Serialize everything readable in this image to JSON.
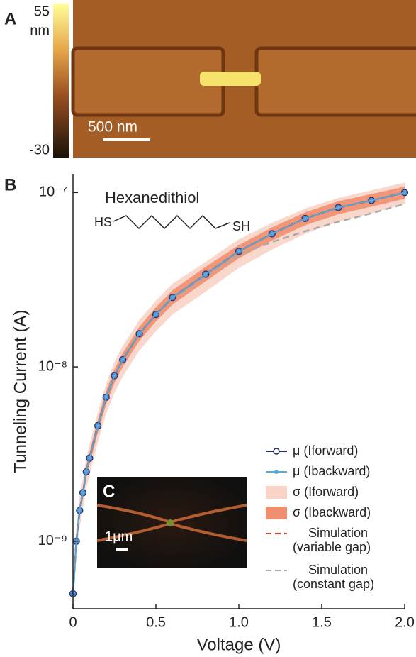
{
  "panels": {
    "a": {
      "label": "A",
      "colorbar": {
        "lim": [
          -30,
          55
        ],
        "ticks": [
          -30,
          55
        ],
        "unit": "nm"
      },
      "scale_bar": "500 nm"
    },
    "c": {
      "label": "C",
      "scale_bar": "1μm"
    }
  },
  "chart_data": {
    "type": "line",
    "panel_label": "B",
    "annotation": "Hexanedithiol",
    "molecule_left": "HS",
    "molecule_right": "SH",
    "x_label": "Voltage (V)",
    "y_label": "Tunneling Current (A)",
    "log_y": true,
    "xlim": [
      0,
      2.0
    ],
    "xticks": [
      0,
      0.5,
      {
        "value": 1.0,
        "label": "1.0"
      },
      1.5,
      {
        "value": 2.0,
        "label": "2.0"
      }
    ],
    "ylim": [
      4.1e-10,
      1.28e-07
    ],
    "yticks": [
      {
        "value": 1e-09,
        "label": "10⁻⁹"
      },
      {
        "value": 1e-08,
        "label": "10⁻⁸"
      },
      {
        "value": 1e-07,
        "label": "10⁻⁷"
      }
    ],
    "x": [
      0,
      0.02,
      0.04,
      0.06,
      0.08,
      0.1,
      0.15,
      0.2,
      0.25,
      0.3,
      0.4,
      0.5,
      0.6,
      0.8,
      1.0,
      1.2,
      1.4,
      1.6,
      1.8,
      2.0
    ],
    "series": [
      {
        "name": "σ (Iforward)",
        "style": "band",
        "color": "#f9d3c5",
        "lower": [
          4.2e-10,
          8.2e-10,
          1.2e-09,
          1.55e-09,
          2e-09,
          2.4e-09,
          3.7e-09,
          5.4e-09,
          7.1e-09,
          8.8e-09,
          1.24e-08,
          1.6e-08,
          2e-08,
          2.7e-08,
          3.7e-08,
          4.7e-08,
          5.8e-08,
          6.8e-08,
          7.6e-08,
          8.6e-08
        ],
        "upper": [
          6e-10,
          1.2e-09,
          1.8e-09,
          2.3e-09,
          3e-09,
          3.6e-09,
          5.5e-09,
          8e-09,
          1.07e-08,
          1.32e-08,
          1.86e-08,
          2.4e-08,
          3e-08,
          4e-08,
          5.4e-08,
          6.7e-08,
          8.1e-08,
          9.3e-08,
          1.03e-07,
          1.14e-07
        ]
      },
      {
        "name": "σ (Ibackward)",
        "style": "band",
        "color": "#ef8f6f",
        "lower": [
          4.6e-10,
          9.2e-10,
          1.38e-09,
          1.75e-09,
          2.3e-09,
          2.76e-09,
          4.2e-09,
          6.1e-09,
          8.1e-09,
          1e-08,
          1.41e-08,
          1.82e-08,
          2.28e-08,
          3.1e-08,
          4.2e-08,
          5.3e-08,
          6.5e-08,
          7.5e-08,
          8.3e-08,
          9.2e-08
        ],
        "upper": [
          5.4e-10,
          1.08e-09,
          1.62e-09,
          2.05e-09,
          2.7e-09,
          3.24e-09,
          5e-09,
          7.3e-09,
          9.7e-09,
          1.2e-08,
          1.7e-08,
          2.2e-08,
          2.75e-08,
          3.75e-08,
          5e-08,
          6.3e-08,
          7.7e-08,
          8.9e-08,
          9.8e-08,
          1.08e-07
        ]
      },
      {
        "name": "Simulation (constant gap)",
        "style": "dashed",
        "color": "#aaaaaa",
        "values": [
          5e-10,
          1e-09,
          1.5e-09,
          1.9e-09,
          2.5e-09,
          3e-09,
          4.6e-09,
          6.7e-09,
          8.9e-09,
          1.1e-08,
          1.55e-08,
          2e-08,
          2.45e-08,
          3.3e-08,
          4.4e-08,
          5.2e-08,
          6e-08,
          6.8e-08,
          7.6e-08,
          8.6e-08
        ]
      },
      {
        "name": "Simulation (variable gap)",
        "style": "dashed",
        "color": "#d9412f",
        "values": [
          5e-10,
          1e-09,
          1.5e-09,
          1.9e-09,
          2.5e-09,
          3e-09,
          4.6e-09,
          6.7e-09,
          8.9e-09,
          1.1e-08,
          1.55e-08,
          2e-08,
          2.5e-08,
          3.4e-08,
          4.6e-08,
          5.8e-08,
          7.1e-08,
          8.2e-08,
          9e-08,
          1e-07
        ]
      },
      {
        "name": "μ (Iforward)",
        "style": "circle-line",
        "color": "#1f2f6e",
        "marker_color": "#5b8ac9",
        "values": [
          5e-10,
          1e-09,
          1.5e-09,
          1.9e-09,
          2.5e-09,
          3e-09,
          4.6e-09,
          6.7e-09,
          8.9e-09,
          1.1e-08,
          1.55e-08,
          2e-08,
          2.5e-08,
          3.4e-08,
          4.6e-08,
          5.8e-08,
          7.1e-08,
          8.2e-08,
          9e-08,
          1e-07
        ]
      },
      {
        "name": "μ (Ibackward)",
        "style": "dot-line",
        "color": "#5aa7d9",
        "values": [
          4.9e-10,
          1e-09,
          1.5e-09,
          1.9e-09,
          2.5e-09,
          3e-09,
          4.6e-09,
          6.7e-09,
          8.9e-09,
          1.1e-08,
          1.55e-08,
          2e-08,
          2.5e-08,
          3.4e-08,
          4.6e-08,
          5.8e-08,
          7.1e-08,
          8.2e-08,
          9e-08,
          1e-07
        ]
      }
    ],
    "legend_order": [
      4,
      5,
      0,
      1,
      3,
      2
    ],
    "legend_position": "lower right"
  }
}
